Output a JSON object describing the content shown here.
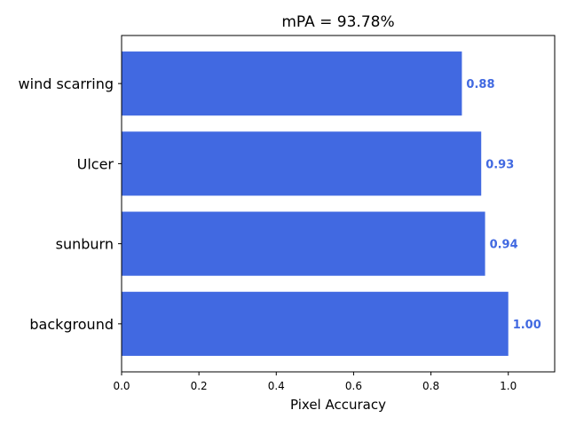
{
  "chart_data": {
    "type": "bar",
    "orientation": "horizontal",
    "title": "mPA = 93.78%",
    "xlabel": "Pixel Accuracy",
    "ylabel": "",
    "categories": [
      "background",
      "sunburn",
      "Ulcer",
      "wind scarring"
    ],
    "values": [
      1.0,
      0.94,
      0.93,
      0.88
    ],
    "value_labels": [
      "1.00",
      "0.94",
      "0.93",
      "0.88"
    ],
    "xlim": [
      0,
      1.12
    ],
    "xticks": [
      0.0,
      0.2,
      0.4,
      0.6,
      0.8,
      1.0
    ],
    "xtick_labels": [
      "0.0",
      "0.2",
      "0.4",
      "0.6",
      "0.8",
      "1.0"
    ],
    "grid": false,
    "bar_color": "#4169e1",
    "label_color": "#4169e1"
  }
}
